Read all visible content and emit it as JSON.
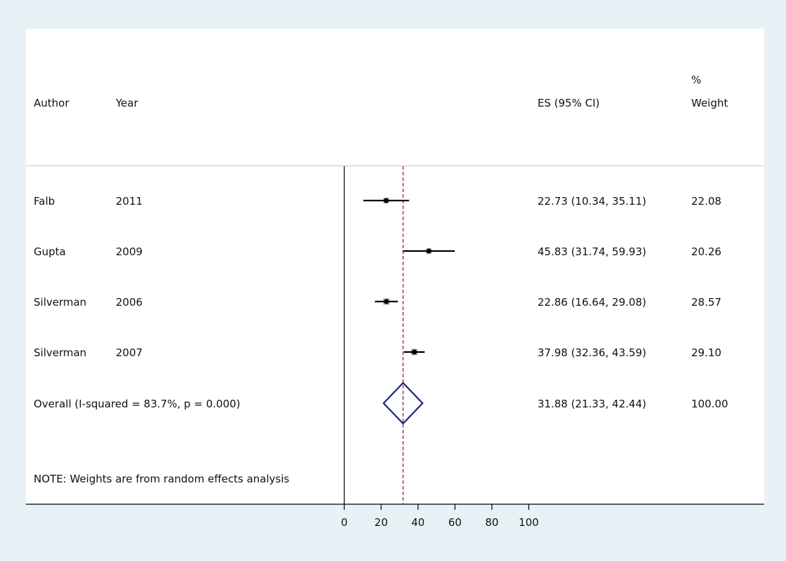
{
  "chart_data": {
    "type": "forest",
    "columns": {
      "author": "Author",
      "year": "Year",
      "es": "ES (95% CI)",
      "weight_line1": "%",
      "weight_line2": "Weight"
    },
    "studies": [
      {
        "author": "Falb",
        "year": "2011",
        "es": 22.73,
        "lo": 10.34,
        "hi": 35.11,
        "es_text": "22.73 (10.34, 35.11)",
        "weight": 22.08,
        "weight_text": "22.08"
      },
      {
        "author": "Gupta",
        "year": "2009",
        "es": 45.83,
        "lo": 31.74,
        "hi": 59.93,
        "es_text": "45.83 (31.74, 59.93)",
        "weight": 20.26,
        "weight_text": "20.26"
      },
      {
        "author": "Silverman",
        "year": "2006",
        "es": 22.86,
        "lo": 16.64,
        "hi": 29.08,
        "es_text": "22.86 (16.64, 29.08)",
        "weight": 28.57,
        "weight_text": "28.57"
      },
      {
        "author": "Silverman",
        "year": "2007",
        "es": 37.98,
        "lo": 32.36,
        "hi": 43.59,
        "es_text": "37.98 (32.36, 43.59)",
        "weight": 29.1,
        "weight_text": "29.10"
      }
    ],
    "overall": {
      "label": "Overall  (I-squared = 83.7%, p = 0.000)",
      "es": 31.88,
      "lo": 21.33,
      "hi": 42.44,
      "es_text": "31.88 (21.33, 42.44)",
      "weight_text": "100.00"
    },
    "note": "NOTE: Weights are from random effects analysis",
    "x_ticks": [
      0,
      20,
      40,
      60,
      80,
      100
    ],
    "xlim": [
      0,
      100
    ],
    "null_line": 0,
    "colors": {
      "background": "#e8f1f5",
      "panel": "#ffffff",
      "diamond": "#1a237e",
      "overall_line": "#8b1a1a",
      "ci_line": "#000000",
      "weight_box": "#b0b0b0"
    }
  }
}
